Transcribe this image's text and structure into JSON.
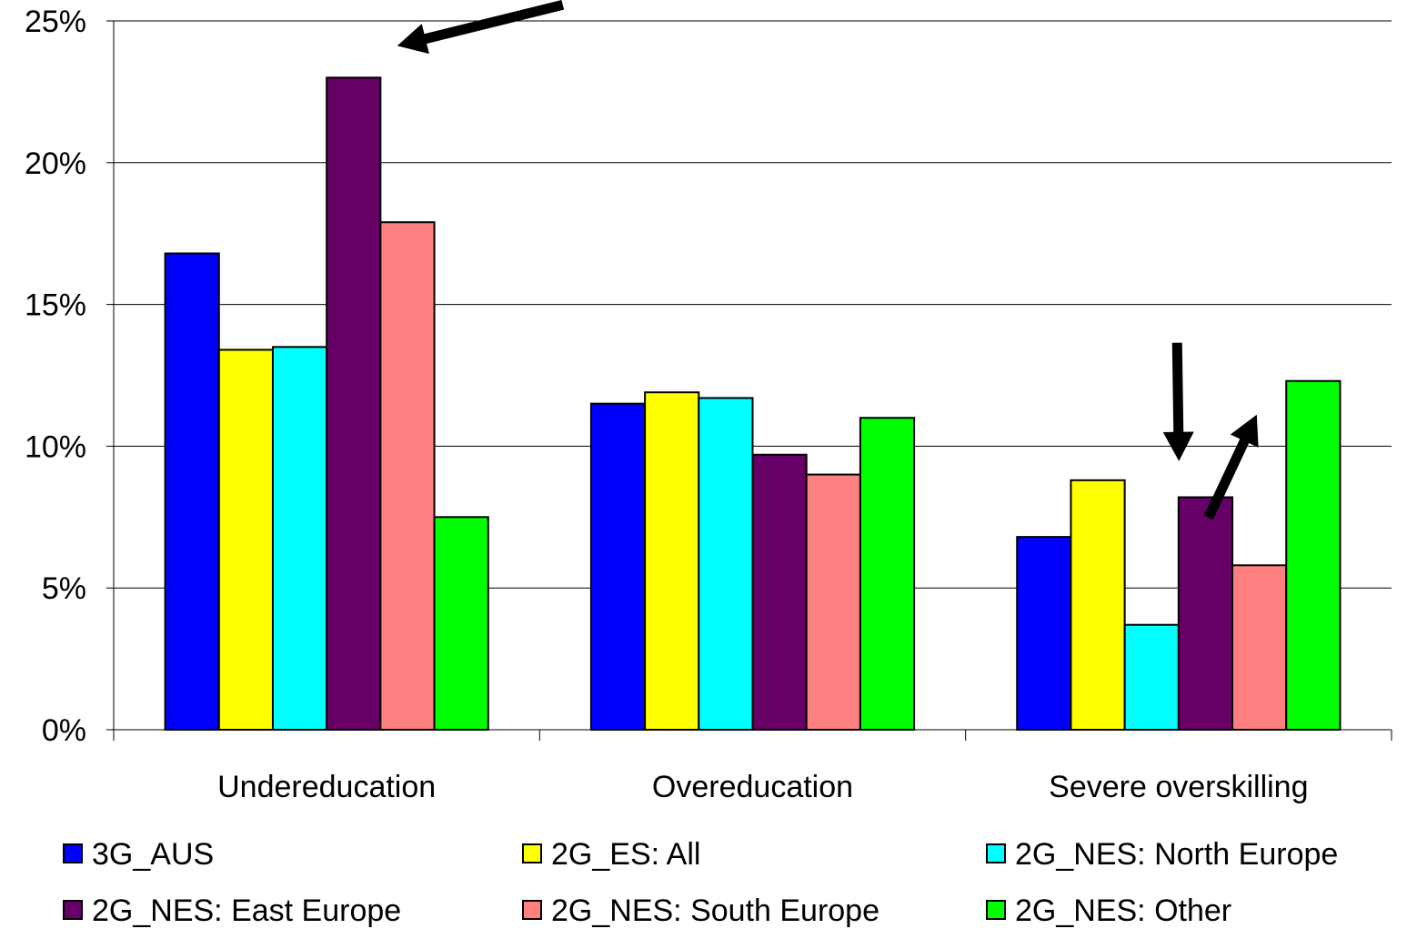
{
  "chart_data": {
    "type": "bar",
    "title": "",
    "xlabel": "",
    "ylabel": "",
    "categories": [
      "Undereducation",
      "Overeducation",
      "Severe overskilling"
    ],
    "series": [
      {
        "name": "3G_AUS",
        "color": "#0000FF",
        "values": [
          16.8,
          11.5,
          6.8
        ]
      },
      {
        "name": "2G_ES: All",
        "color": "#FFFF00",
        "values": [
          13.4,
          11.9,
          8.8
        ]
      },
      {
        "name": "2G_NES: North Europe",
        "color": "#00FFFF",
        "values": [
          13.5,
          11.7,
          3.7
        ]
      },
      {
        "name": "2G_NES: East Europe",
        "color": "#660066",
        "values": [
          23.0,
          9.7,
          8.2
        ]
      },
      {
        "name": "2G_NES: South Europe",
        "color": "#FF8080",
        "values": [
          17.9,
          9.0,
          5.8
        ]
      },
      {
        "name": "2G_NES: Other",
        "color": "#00FF00",
        "values": [
          7.5,
          11.0,
          12.3
        ]
      }
    ],
    "yticks": [
      "0%",
      "5%",
      "10%",
      "15%",
      "20%",
      "25%"
    ],
    "ylim": [
      0,
      25
    ],
    "grid": true,
    "legend_position": "bottom",
    "annotations": [
      {
        "type": "arrow",
        "target_category": "Undereducation",
        "target_series": "2G_NES: East Europe"
      },
      {
        "type": "arrow",
        "target_category": "Severe overskilling",
        "target_series": "2G_NES: North Europe"
      },
      {
        "type": "arrow",
        "target_category": "Severe overskilling",
        "target_series": "2G_NES: Other"
      }
    ]
  }
}
